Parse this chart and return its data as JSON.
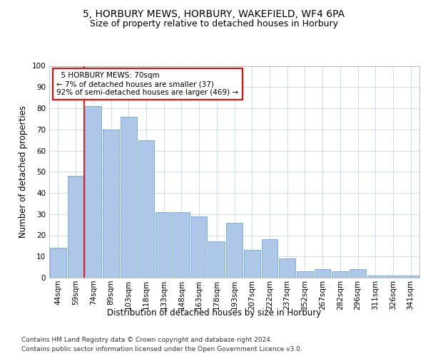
{
  "title1": "5, HORBURY MEWS, HORBURY, WAKEFIELD, WF4 6PA",
  "title2": "Size of property relative to detached houses in Horbury",
  "xlabel": "Distribution of detached houses by size in Horbury",
  "ylabel": "Number of detached properties",
  "footnote1": "Contains HM Land Registry data © Crown copyright and database right 2024.",
  "footnote2": "Contains public sector information licensed under the Open Government Licence v3.0.",
  "categories": [
    "44sqm",
    "59sqm",
    "74sqm",
    "89sqm",
    "103sqm",
    "118sqm",
    "133sqm",
    "148sqm",
    "163sqm",
    "178sqm",
    "193sqm",
    "207sqm",
    "222sqm",
    "237sqm",
    "252sqm",
    "267sqm",
    "282sqm",
    "296sqm",
    "311sqm",
    "326sqm",
    "341sqm"
  ],
  "values": [
    14,
    48,
    81,
    70,
    76,
    65,
    31,
    31,
    29,
    17,
    26,
    13,
    18,
    9,
    3,
    4,
    3,
    4,
    1,
    1,
    1
  ],
  "bar_color": "#aec6e8",
  "bar_edge_color": "#5b9bd5",
  "vline_x": 1.5,
  "vline_color": "#ff0000",
  "annotation_text": "  5 HORBURY MEWS: 70sqm\n← 7% of detached houses are smaller (37)\n92% of semi-detached houses are larger (469) →",
  "annotation_box_color": "#ffffff",
  "annotation_box_edge": "#ff0000",
  "ylim": [
    0,
    100
  ],
  "yticks": [
    0,
    10,
    20,
    30,
    40,
    50,
    60,
    70,
    80,
    90,
    100
  ],
  "background_color": "#ffffff",
  "grid_color": "#b8cfe8",
  "title1_fontsize": 10,
  "title2_fontsize": 9,
  "xlabel_fontsize": 8.5,
  "ylabel_fontsize": 8.5,
  "tick_fontsize": 7.5,
  "annotation_fontsize": 7.5,
  "footnote_fontsize": 6.5
}
